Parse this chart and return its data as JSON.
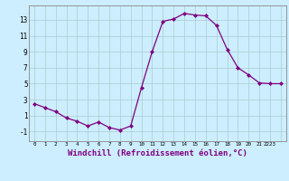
{
  "x": [
    0,
    1,
    2,
    3,
    4,
    5,
    6,
    7,
    8,
    9,
    10,
    11,
    12,
    13,
    14,
    15,
    16,
    17,
    18,
    19,
    20,
    21,
    22,
    23
  ],
  "y": [
    2.5,
    2.0,
    1.5,
    0.7,
    0.3,
    -0.3,
    0.2,
    -0.5,
    -0.8,
    -0.3,
    4.5,
    9.0,
    12.8,
    13.1,
    13.8,
    13.6,
    13.5,
    12.3,
    9.3,
    7.0,
    6.1,
    5.1,
    5.0,
    5.0
  ],
  "line_color": "#800080",
  "marker": "D",
  "marker_size": 2,
  "bg_color": "#cceeff",
  "grid_color": "#aacccc",
  "xlabel": "Windchill (Refroidissement éolien,°C)",
  "xlabel_fontsize": 6.5,
  "ytick_values": [
    -1,
    1,
    3,
    5,
    7,
    9,
    11,
    13
  ],
  "ylim": [
    -2.2,
    14.8
  ],
  "xlim": [
    -0.5,
    23.5
  ]
}
